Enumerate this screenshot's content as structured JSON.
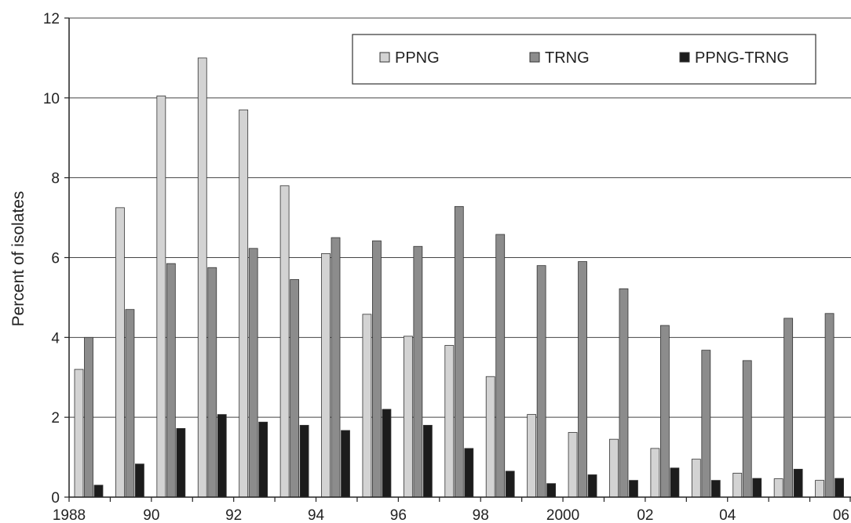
{
  "chart_data": {
    "type": "bar",
    "title": "",
    "xlabel": "",
    "ylabel": "Percent of isolates",
    "ylim": [
      0,
      12
    ],
    "yticks": [
      0,
      2,
      4,
      6,
      8,
      10,
      12
    ],
    "ytick_labels": [
      "0",
      "2",
      "4",
      "6",
      "8",
      "10",
      "12"
    ],
    "grid": true,
    "legend_position": "top-right",
    "categories": [
      "1988",
      "1989",
      "1990",
      "1991",
      "1992",
      "1993",
      "1994",
      "1995",
      "1996",
      "1997",
      "1998",
      "1999",
      "2000",
      "2001",
      "2002",
      "2003",
      "2004",
      "2005",
      "2006"
    ],
    "xtick_labels": [
      "1988",
      "",
      "90",
      "",
      "92",
      "",
      "94",
      "",
      "96",
      "",
      "98",
      "",
      "2000",
      "",
      "02",
      "",
      "04",
      "",
      "06"
    ],
    "series": [
      {
        "name": "PPNG",
        "color": "#d3d3d3",
        "values": [
          3.2,
          7.25,
          10.05,
          11.0,
          9.7,
          7.8,
          6.1,
          4.58,
          4.03,
          3.8,
          3.02,
          2.07,
          1.62,
          1.45,
          1.22,
          0.95,
          0.6,
          0.46,
          0.42
        ]
      },
      {
        "name": "TRNG",
        "color": "#8c8c8c",
        "values": [
          4.0,
          4.7,
          5.85,
          5.75,
          6.23,
          5.45,
          6.5,
          6.42,
          6.28,
          7.28,
          6.58,
          5.8,
          5.9,
          5.22,
          4.3,
          3.68,
          3.42,
          4.48,
          4.6
        ]
      },
      {
        "name": "PPNG-TRNG",
        "color": "#1c1c1c",
        "values": [
          0.3,
          0.83,
          1.72,
          2.07,
          1.88,
          1.8,
          1.67,
          2.2,
          1.8,
          1.22,
          0.65,
          0.34,
          0.56,
          0.42,
          0.73,
          0.42,
          0.47,
          0.7,
          0.47
        ]
      }
    ]
  }
}
